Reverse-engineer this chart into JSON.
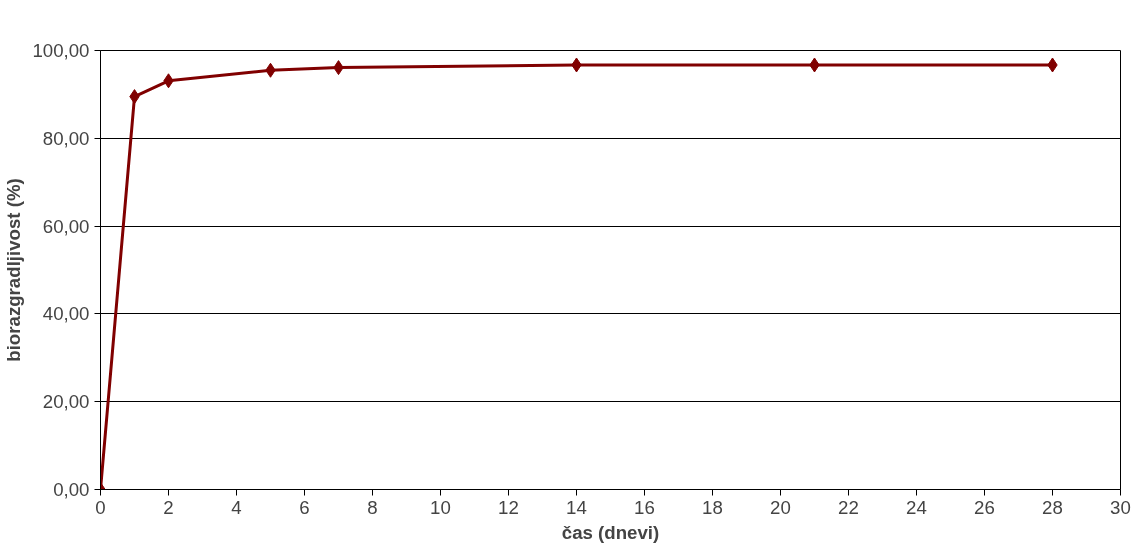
{
  "chart_data": {
    "type": "line",
    "xlabel": "čas (dnevi)",
    "ylabel": "biorazgradljivost (%)",
    "x": [
      0,
      1,
      2,
      5,
      7,
      14,
      21,
      28
    ],
    "series": [
      {
        "color": "#800000",
        "values": [
          0,
          89.5,
          93.1,
          95.5,
          96.1,
          96.7,
          96.7,
          96.7
        ]
      }
    ],
    "xlim": [
      0,
      30
    ],
    "xticks": [
      0,
      2,
      4,
      6,
      8,
      10,
      12,
      14,
      16,
      18,
      20,
      22,
      24,
      26,
      28,
      30
    ],
    "ylim": [
      0,
      100
    ],
    "yticks": [
      {
        "value": 0,
        "label": "0,00"
      },
      {
        "value": 20,
        "label": "20,00"
      },
      {
        "value": 40,
        "label": "40,00"
      },
      {
        "value": 60,
        "label": "60,00"
      },
      {
        "value": 80,
        "label": "80,00"
      },
      {
        "value": 100,
        "label": "100,00"
      }
    ],
    "grid": "y",
    "marker": "diamond",
    "line_style": "solid"
  }
}
